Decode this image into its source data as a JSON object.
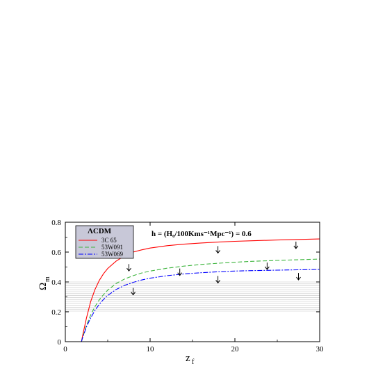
{
  "chart_data": {
    "type": "line",
    "xlabel": "z",
    "xlabel_sub": "f",
    "ylabel": "Ω",
    "ylabel_sub": "m",
    "xlim": [
      0,
      30
    ],
    "ylim": [
      0,
      0.8
    ],
    "xticks": [
      0,
      10,
      20,
      30
    ],
    "xtick_labels": [
      "0",
      "10",
      "20",
      "30"
    ],
    "yticks": [
      0,
      0.2,
      0.4,
      0.6,
      0.8
    ],
    "ytick_labels": [
      "0",
      "0.2",
      "0.4",
      "0.6",
      "0.8"
    ],
    "shaded_band": [
      0.2,
      0.4
    ],
    "annotation": "h = (H₀/100Kms⁻¹Mpc⁻¹) = 0.6",
    "legend": {
      "title": "ΛCDM",
      "placement": "top-left"
    },
    "series": [
      {
        "name": "3C 65",
        "color": "#ff0000",
        "dash": "solid",
        "x": [
          1.9,
          2,
          2.5,
          3,
          3.5,
          4,
          4.5,
          5,
          6,
          7,
          8,
          9,
          10,
          12,
          14,
          16,
          18,
          20,
          22,
          25,
          28,
          30
        ],
        "y": [
          0.0,
          0.03,
          0.16,
          0.27,
          0.35,
          0.41,
          0.455,
          0.49,
          0.54,
          0.575,
          0.6,
          0.615,
          0.627,
          0.643,
          0.653,
          0.661,
          0.667,
          0.672,
          0.676,
          0.681,
          0.685,
          0.688
        ]
      },
      {
        "name": "53W091",
        "color": "#3cb43c",
        "dash": "dashed",
        "x": [
          1.9,
          2,
          2.5,
          3,
          3.5,
          4,
          4.5,
          5,
          6,
          7,
          8,
          9,
          10,
          12,
          14,
          16,
          18,
          20,
          22,
          25,
          28,
          30
        ],
        "y": [
          0.0,
          0.02,
          0.11,
          0.18,
          0.235,
          0.28,
          0.315,
          0.345,
          0.39,
          0.42,
          0.442,
          0.46,
          0.473,
          0.492,
          0.506,
          0.517,
          0.525,
          0.532,
          0.538,
          0.544,
          0.55,
          0.553
        ]
      },
      {
        "name": "53W069",
        "color": "#0000ff",
        "dash": "dashdot",
        "x": [
          1.9,
          2,
          2.5,
          3,
          3.5,
          4,
          4.5,
          5,
          6,
          7,
          8,
          9,
          10,
          12,
          14,
          16,
          18,
          20,
          22,
          25,
          28,
          30
        ],
        "y": [
          0.0,
          0.02,
          0.1,
          0.16,
          0.21,
          0.25,
          0.283,
          0.31,
          0.35,
          0.377,
          0.397,
          0.413,
          0.425,
          0.442,
          0.454,
          0.462,
          0.468,
          0.473,
          0.476,
          0.479,
          0.482,
          0.484
        ]
      }
    ],
    "upper_limit_arrows": [
      {
        "x": 7.5,
        "y": 0.52
      },
      {
        "x": 8.0,
        "y": 0.36
      },
      {
        "x": 13.5,
        "y": 0.49
      },
      {
        "x": 18.0,
        "y": 0.64
      },
      {
        "x": 18.0,
        "y": 0.44
      },
      {
        "x": 23.8,
        "y": 0.53
      },
      {
        "x": 27.2,
        "y": 0.67
      },
      {
        "x": 27.5,
        "y": 0.46
      }
    ]
  }
}
